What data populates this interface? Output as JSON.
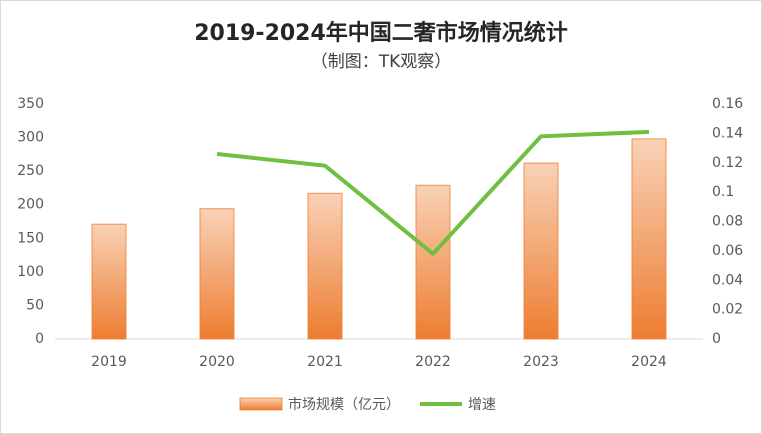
{
  "chart_data": {
    "type": "bar-line",
    "title": "2019-2024年中国二奢市场情况统计",
    "subtitle": "（制图：TK观察）",
    "categories": [
      "2019",
      "2020",
      "2021",
      "2022",
      "2023",
      "2024"
    ],
    "series": [
      {
        "name": "市场规模（亿元）",
        "type": "bar",
        "color": "#ed7d31",
        "values": [
          171,
          194,
          217,
          229,
          262,
          298
        ]
      },
      {
        "name": "增速",
        "type": "line",
        "axis": "y2",
        "color": "#70bf41",
        "values": [
          null,
          0.126,
          0.118,
          0.058,
          0.138,
          0.141
        ]
      }
    ],
    "ylim": [
      0,
      350
    ],
    "yticks": [
      0,
      50,
      100,
      150,
      200,
      250,
      300,
      350
    ],
    "y2lim": [
      0,
      0.16
    ],
    "y2ticks": [
      0,
      0.02,
      0.04,
      0.06,
      0.08,
      0.1,
      0.12,
      0.14,
      0.16
    ],
    "grid": false,
    "legend": "bottom"
  }
}
